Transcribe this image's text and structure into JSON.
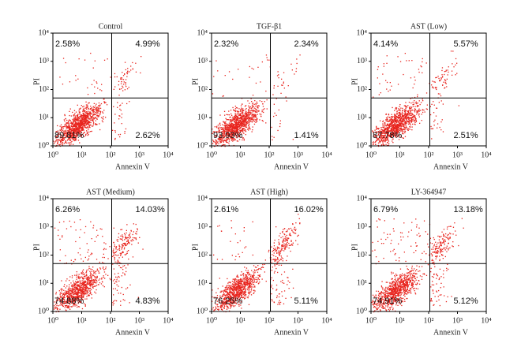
{
  "chart_data": [
    {
      "type": "scatter",
      "title": "Control",
      "xlabel": "Annexin V",
      "ylabel": "PI",
      "log": true,
      "color": "#e8251e",
      "xlim": [
        1,
        10000
      ],
      "ylim": [
        1,
        10000
      ],
      "xticks": [
        {
          "value": 1,
          "label": "10⁰"
        },
        {
          "value": 10,
          "label": "10¹"
        },
        {
          "value": 100,
          "label": "10²"
        },
        {
          "value": 1000,
          "label": "10³"
        },
        {
          "value": 10000,
          "label": "10⁴"
        }
      ],
      "yticks": [
        {
          "value": 1,
          "label": "10⁰"
        },
        {
          "value": 10,
          "label": "10¹"
        },
        {
          "value": 100,
          "label": "10²"
        },
        {
          "value": 1000,
          "label": "10³"
        },
        {
          "value": 10000,
          "label": "10⁴"
        }
      ],
      "quadrant_gate": {
        "x": 110,
        "y": 50
      },
      "values": [
        2.58,
        4.99,
        89.81,
        2.62
      ],
      "value_labels": [
        "2.58%",
        "4.99%",
        "89.81%",
        "2.62%"
      ]
    },
    {
      "type": "scatter",
      "title": "TGF-β1",
      "xlabel": "Annexin V",
      "ylabel": "PI",
      "log": true,
      "color": "#e8251e",
      "xlim": [
        1,
        10000
      ],
      "ylim": [
        1,
        10000
      ],
      "xticks": [
        {
          "value": 1,
          "label": "10⁰"
        },
        {
          "value": 10,
          "label": "10¹"
        },
        {
          "value": 100,
          "label": "10²"
        },
        {
          "value": 1000,
          "label": "10³"
        },
        {
          "value": 10000,
          "label": "10⁴"
        }
      ],
      "yticks": [
        {
          "value": 1,
          "label": "10⁰"
        },
        {
          "value": 10,
          "label": "10¹"
        },
        {
          "value": 100,
          "label": "10²"
        },
        {
          "value": 1000,
          "label": "10³"
        },
        {
          "value": 10000,
          "label": "10⁴"
        }
      ],
      "quadrant_gate": {
        "x": 110,
        "y": 50
      },
      "values": [
        2.32,
        2.34,
        93.93,
        1.41
      ],
      "value_labels": [
        "2.32%",
        "2.34%",
        "93.93%",
        "1.41%"
      ]
    },
    {
      "type": "scatter",
      "title": "AST (Low)",
      "xlabel": "Annexin V",
      "ylabel": "PI",
      "log": true,
      "color": "#e8251e",
      "xlim": [
        1,
        10000
      ],
      "ylim": [
        1,
        10000
      ],
      "xticks": [
        {
          "value": 1,
          "label": "10⁰"
        },
        {
          "value": 10,
          "label": "10¹"
        },
        {
          "value": 100,
          "label": "10²"
        },
        {
          "value": 1000,
          "label": "10³"
        },
        {
          "value": 10000,
          "label": "10⁴"
        }
      ],
      "yticks": [
        {
          "value": 1,
          "label": "10⁰"
        },
        {
          "value": 10,
          "label": "10¹"
        },
        {
          "value": 100,
          "label": "10²"
        },
        {
          "value": 1000,
          "label": "10³"
        },
        {
          "value": 10000,
          "label": "10⁴"
        }
      ],
      "quadrant_gate": {
        "x": 110,
        "y": 50
      },
      "values": [
        4.14,
        5.57,
        87.78,
        2.51
      ],
      "value_labels": [
        "4.14%",
        "5.57%",
        "87.78%",
        "2.51%"
      ]
    },
    {
      "type": "scatter",
      "title": "AST (Medium)",
      "xlabel": "Annexin V",
      "ylabel": "PI",
      "log": true,
      "color": "#e8251e",
      "xlim": [
        1,
        10000
      ],
      "ylim": [
        1,
        10000
      ],
      "xticks": [
        {
          "value": 1,
          "label": "10⁰"
        },
        {
          "value": 10,
          "label": "10¹"
        },
        {
          "value": 100,
          "label": "10²"
        },
        {
          "value": 1000,
          "label": "10³"
        },
        {
          "value": 10000,
          "label": "10⁴"
        }
      ],
      "yticks": [
        {
          "value": 1,
          "label": "10⁰"
        },
        {
          "value": 10,
          "label": "10¹"
        },
        {
          "value": 100,
          "label": "10²"
        },
        {
          "value": 1000,
          "label": "10³"
        },
        {
          "value": 10000,
          "label": "10⁴"
        }
      ],
      "quadrant_gate": {
        "x": 110,
        "y": 50
      },
      "values": [
        6.26,
        14.03,
        74.88,
        4.83
      ],
      "value_labels": [
        "6.26%",
        "14.03%",
        "74.88%",
        "4.83%"
      ]
    },
    {
      "type": "scatter",
      "title": "AST (High)",
      "xlabel": "Annexin V",
      "ylabel": "PI",
      "log": true,
      "color": "#e8251e",
      "xlim": [
        1,
        10000
      ],
      "ylim": [
        1,
        10000
      ],
      "xticks": [
        {
          "value": 1,
          "label": "10⁰"
        },
        {
          "value": 10,
          "label": "10¹"
        },
        {
          "value": 100,
          "label": "10²"
        },
        {
          "value": 1000,
          "label": "10³"
        },
        {
          "value": 10000,
          "label": "10⁴"
        }
      ],
      "yticks": [
        {
          "value": 1,
          "label": "10⁰"
        },
        {
          "value": 10,
          "label": "10¹"
        },
        {
          "value": 100,
          "label": "10²"
        },
        {
          "value": 1000,
          "label": "10³"
        },
        {
          "value": 10000,
          "label": "10⁴"
        }
      ],
      "quadrant_gate": {
        "x": 110,
        "y": 50
      },
      "values": [
        2.61,
        16.02,
        76.25,
        5.11
      ],
      "value_labels": [
        "2.61%",
        "16.02%",
        "76.25%",
        "5.11%"
      ]
    },
    {
      "type": "scatter",
      "title": "LY-364947",
      "xlabel": "Annexin V",
      "ylabel": "PI",
      "log": true,
      "color": "#e8251e",
      "xlim": [
        1,
        10000
      ],
      "ylim": [
        1,
        10000
      ],
      "xticks": [
        {
          "value": 1,
          "label": "10⁰"
        },
        {
          "value": 10,
          "label": "10¹"
        },
        {
          "value": 100,
          "label": "10²"
        },
        {
          "value": 1000,
          "label": "10³"
        },
        {
          "value": 10000,
          "label": "10⁴"
        }
      ],
      "yticks": [
        {
          "value": 1,
          "label": "10⁰"
        },
        {
          "value": 10,
          "label": "10¹"
        },
        {
          "value": 100,
          "label": "10²"
        },
        {
          "value": 1000,
          "label": "10³"
        },
        {
          "value": 10000,
          "label": "10⁴"
        }
      ],
      "quadrant_gate": {
        "x": 110,
        "y": 50
      },
      "values": [
        6.79,
        13.18,
        74.91,
        5.12
      ],
      "value_labels": [
        "6.79%",
        "13.18%",
        "74.91%",
        "5.12%"
      ]
    }
  ]
}
